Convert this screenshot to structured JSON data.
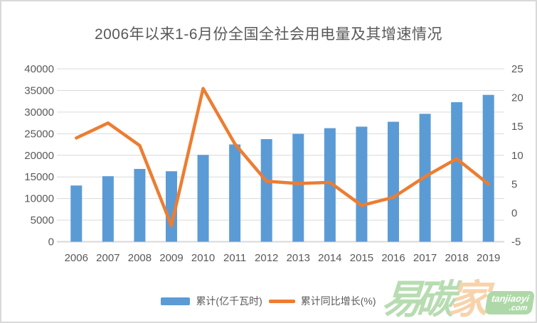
{
  "chart_data": {
    "type": "combo",
    "title": "2006年以来1-6月份全国全社会用电量及其增速情况",
    "categories": [
      "2006",
      "2007",
      "2008",
      "2009",
      "2010",
      "2011",
      "2012",
      "2013",
      "2014",
      "2015",
      "2016",
      "2017",
      "2018",
      "2019"
    ],
    "series": [
      {
        "name": "累计(亿千瓦时)",
        "type": "bar",
        "axis": "left",
        "color": "#5B9BD5",
        "values": [
          13011,
          15164,
          16842,
          16307,
          20094,
          22515,
          23744,
          24961,
          26276,
          26624,
          27759,
          29598,
          32291,
          33980
        ]
      },
      {
        "name": "累计同比增长(%)",
        "type": "line",
        "axis": "right",
        "color": "#ED7D31",
        "values": [
          13.0,
          15.6,
          11.7,
          -2.2,
          21.6,
          12.0,
          5.5,
          5.1,
          5.3,
          1.3,
          2.7,
          6.3,
          9.4,
          5.0
        ]
      }
    ],
    "left_axis": {
      "min": 0,
      "max": 40000,
      "step": 5000,
      "tick_labels": [
        "0",
        "5000",
        "10000",
        "15000",
        "20000",
        "25000",
        "30000",
        "35000",
        "40000"
      ]
    },
    "right_axis": {
      "min": -5,
      "max": 25,
      "step": 5,
      "tick_labels": [
        "-5",
        "0",
        "5",
        "10",
        "15",
        "20",
        "25"
      ]
    },
    "grid": true,
    "legend_position": "bottom"
  },
  "watermark": {
    "char1": "易",
    "char2": "碳",
    "char3": "家",
    "badge_line1": "tanjiaoyi",
    "badge_line2": ".com"
  },
  "colors": {
    "bar": "#5B9BD5",
    "line": "#ED7D31",
    "grid": "#D9D9D9",
    "axis_text": "#595959",
    "title_text": "#595959",
    "watermark_green": "#aed8a7",
    "watermark_orange": "#f7cda2",
    "badge_green": "#a5d39e"
  }
}
